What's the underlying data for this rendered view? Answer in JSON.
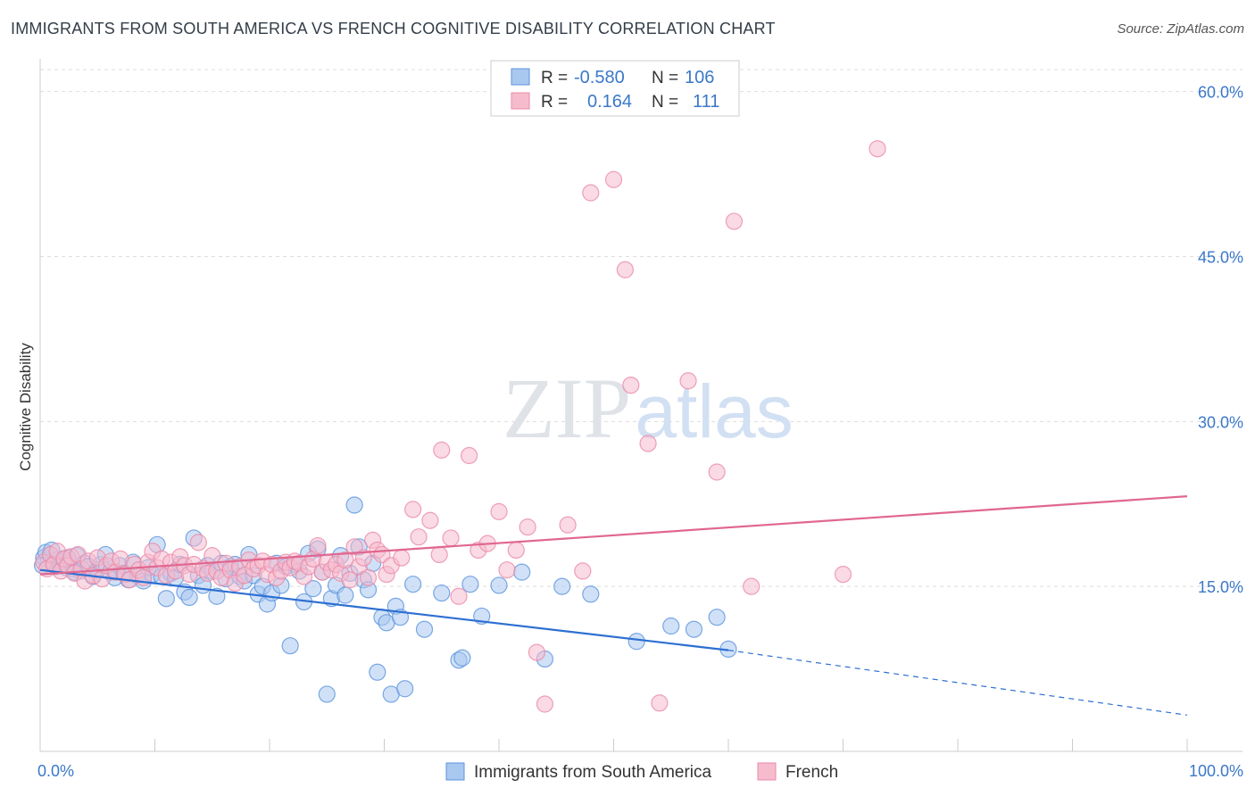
{
  "title": "IMMIGRANTS FROM SOUTH AMERICA VS FRENCH COGNITIVE DISABILITY CORRELATION CHART",
  "source": "Source: ZipAtlas.com",
  "watermark": {
    "zip": "ZIP",
    "atlas": "atlas"
  },
  "colors": {
    "blue_fill": "#a9c8f0",
    "blue_stroke": "#5b93dd",
    "blue_line": "#2d6fd2",
    "pink_fill": "#f6bccd",
    "pink_stroke": "#ea8aa8",
    "pink_line": "#e0678f",
    "tick": "#3a78c9",
    "grid": "#dddddd"
  },
  "legend": {
    "rows": [
      {
        "r_label": "R =",
        "r_value": "-0.580",
        "n_label": "N =",
        "n_value": "106"
      },
      {
        "r_label": "R =",
        "r_value": "0.164",
        "n_label": "N =",
        "n_value": "111"
      }
    ]
  },
  "chart_data": {
    "type": "scatter",
    "title": "IMMIGRANTS FROM SOUTH AMERICA VS FRENCH COGNITIVE DISABILITY CORRELATION CHART",
    "xlabel": "",
    "ylabel": "Cognitive Disability",
    "xlim": [
      0,
      100
    ],
    "ylim": [
      0,
      62
    ],
    "x_tick_labels": [
      "0.0%",
      "100.0%"
    ],
    "y_ticks": [
      15,
      30,
      45,
      60
    ],
    "y_tick_labels": [
      "15.0%",
      "30.0%",
      "45.0%",
      "60.0%"
    ],
    "grid": true,
    "legend_position": "top-center",
    "series": [
      {
        "name": "Immigrants from South America",
        "color": "#a9c8f0",
        "R": -0.58,
        "N": 106,
        "trend": {
          "x": [
            0,
            60,
            100
          ],
          "y": [
            16.5,
            9.2,
            3.3
          ],
          "solid_until": 60
        },
        "points": [
          [
            0.3,
            17.6
          ],
          [
            0.5,
            18.1
          ],
          [
            0.7,
            17.2
          ],
          [
            0.9,
            17.9
          ],
          [
            1.1,
            17.0
          ],
          [
            1.3,
            16.8
          ],
          [
            1.5,
            17.4
          ],
          [
            1.7,
            16.9
          ],
          [
            2.0,
            17.5
          ],
          [
            2.3,
            16.7
          ],
          [
            2.6,
            17.2
          ],
          [
            2.9,
            16.6
          ],
          [
            3.2,
            17.8
          ],
          [
            3.5,
            16.4
          ],
          [
            3.9,
            17.1
          ],
          [
            4.2,
            16.8
          ],
          [
            4.6,
            15.9
          ],
          [
            5.0,
            16.5
          ],
          [
            5.3,
            17.0
          ],
          [
            5.7,
            17.9
          ],
          [
            6.1,
            16.3
          ],
          [
            6.5,
            15.8
          ],
          [
            6.9,
            16.9
          ],
          [
            7.3,
            16.2
          ],
          [
            7.7,
            15.6
          ],
          [
            8.1,
            17.2
          ],
          [
            8.5,
            16.0
          ],
          [
            9.0,
            15.5
          ],
          [
            9.4,
            16.7
          ],
          [
            9.8,
            16.1
          ],
          [
            10.2,
            18.8
          ],
          [
            10.6,
            15.9
          ],
          [
            11.0,
            13.9
          ],
          [
            11.4,
            16.2
          ],
          [
            11.8,
            15.8
          ],
          [
            12.2,
            17.0
          ],
          [
            12.6,
            14.5
          ],
          [
            13.0,
            14.0
          ],
          [
            13.4,
            19.4
          ],
          [
            13.8,
            16.0
          ],
          [
            14.2,
            15.1
          ],
          [
            14.6,
            16.9
          ],
          [
            15.0,
            16.4
          ],
          [
            15.4,
            14.1
          ],
          [
            15.8,
            17.1
          ],
          [
            16.2,
            15.7
          ],
          [
            16.6,
            16.8
          ],
          [
            17.0,
            17.0
          ],
          [
            17.4,
            15.9
          ],
          [
            17.8,
            15.5
          ],
          [
            18.2,
            17.9
          ],
          [
            18.6,
            16.0
          ],
          [
            19.0,
            14.3
          ],
          [
            19.4,
            15.0
          ],
          [
            19.8,
            13.4
          ],
          [
            20.2,
            14.4
          ],
          [
            20.6,
            17.1
          ],
          [
            21.0,
            15.1
          ],
          [
            21.4,
            16.8
          ],
          [
            21.8,
            9.6
          ],
          [
            22.2,
            17.0
          ],
          [
            22.6,
            16.4
          ],
          [
            23.0,
            13.6
          ],
          [
            23.4,
            18.0
          ],
          [
            23.8,
            14.8
          ],
          [
            24.2,
            18.4
          ],
          [
            24.6,
            16.3
          ],
          [
            25.0,
            5.2
          ],
          [
            25.4,
            13.9
          ],
          [
            25.8,
            15.1
          ],
          [
            26.2,
            17.8
          ],
          [
            26.6,
            14.2
          ],
          [
            27.0,
            16.2
          ],
          [
            27.4,
            22.4
          ],
          [
            27.8,
            18.6
          ],
          [
            28.2,
            15.6
          ],
          [
            28.6,
            14.7
          ],
          [
            29.0,
            17.1
          ],
          [
            29.4,
            7.2
          ],
          [
            29.8,
            12.2
          ],
          [
            30.2,
            11.7
          ],
          [
            30.6,
            5.2
          ],
          [
            31.0,
            13.2
          ],
          [
            31.4,
            12.2
          ],
          [
            31.8,
            5.7
          ],
          [
            32.5,
            15.2
          ],
          [
            33.5,
            11.1
          ],
          [
            35.0,
            14.4
          ],
          [
            36.5,
            8.3
          ],
          [
            36.8,
            8.5
          ],
          [
            37.5,
            15.2
          ],
          [
            38.5,
            12.3
          ],
          [
            40.0,
            15.1
          ],
          [
            42.0,
            16.3
          ],
          [
            44.0,
            8.4
          ],
          [
            45.5,
            15.0
          ],
          [
            48.0,
            14.3
          ],
          [
            52.0,
            10.0
          ],
          [
            55.0,
            11.4
          ],
          [
            57.0,
            11.1
          ],
          [
            59.0,
            12.2
          ],
          [
            60.0,
            9.3
          ],
          [
            0.2,
            16.9
          ],
          [
            1.0,
            18.3
          ],
          [
            2.4,
            17.6
          ],
          [
            3.0,
            16.3
          ]
        ]
      },
      {
        "name": "French",
        "color": "#f6bccd",
        "R": 0.164,
        "N": 111,
        "trend": {
          "x": [
            0,
            100
          ],
          "y": [
            16.1,
            23.2
          ]
        },
        "points": [
          [
            0.3,
            17.2
          ],
          [
            0.6,
            16.6
          ],
          [
            0.9,
            17.9
          ],
          [
            1.2,
            17.0
          ],
          [
            1.5,
            18.2
          ],
          [
            1.8,
            16.4
          ],
          [
            2.1,
            17.5
          ],
          [
            2.4,
            16.9
          ],
          [
            2.7,
            17.7
          ],
          [
            3.0,
            16.2
          ],
          [
            3.3,
            17.9
          ],
          [
            3.6,
            16.6
          ],
          [
            3.9,
            15.5
          ],
          [
            4.2,
            17.3
          ],
          [
            4.6,
            16.0
          ],
          [
            5.0,
            17.6
          ],
          [
            5.4,
            15.7
          ],
          [
            5.8,
            16.9
          ],
          [
            6.2,
            17.3
          ],
          [
            6.6,
            16.3
          ],
          [
            7.0,
            17.5
          ],
          [
            7.4,
            16.1
          ],
          [
            7.8,
            15.6
          ],
          [
            8.2,
            17.0
          ],
          [
            8.6,
            16.5
          ],
          [
            9.0,
            15.8
          ],
          [
            9.4,
            17.2
          ],
          [
            9.8,
            18.2
          ],
          [
            10.2,
            16.7
          ],
          [
            10.6,
            17.5
          ],
          [
            11.0,
            16.0
          ],
          [
            11.4,
            17.2
          ],
          [
            11.8,
            16.4
          ],
          [
            12.2,
            17.7
          ],
          [
            12.6,
            16.9
          ],
          [
            13.0,
            16.1
          ],
          [
            13.4,
            17.0
          ],
          [
            13.8,
            19.0
          ],
          [
            14.2,
            16.6
          ],
          [
            14.6,
            16.2
          ],
          [
            15.0,
            17.8
          ],
          [
            15.4,
            16.4
          ],
          [
            15.8,
            15.8
          ],
          [
            16.2,
            17.1
          ],
          [
            16.6,
            16.5
          ],
          [
            17.0,
            15.3
          ],
          [
            17.4,
            16.8
          ],
          [
            17.8,
            16.0
          ],
          [
            18.2,
            17.4
          ],
          [
            18.6,
            16.6
          ],
          [
            19.0,
            16.9
          ],
          [
            19.4,
            17.3
          ],
          [
            19.8,
            16.1
          ],
          [
            20.2,
            17.0
          ],
          [
            20.6,
            15.8
          ],
          [
            21.0,
            16.4
          ],
          [
            21.4,
            17.2
          ],
          [
            21.8,
            16.7
          ],
          [
            22.2,
            17.3
          ],
          [
            22.6,
            17.1
          ],
          [
            23.0,
            15.9
          ],
          [
            23.4,
            16.8
          ],
          [
            23.8,
            17.5
          ],
          [
            24.2,
            18.7
          ],
          [
            24.6,
            16.3
          ],
          [
            25.0,
            17.2
          ],
          [
            25.4,
            16.5
          ],
          [
            25.8,
            17.0
          ],
          [
            26.2,
            16.2
          ],
          [
            26.6,
            17.4
          ],
          [
            27.0,
            15.6
          ],
          [
            27.4,
            18.6
          ],
          [
            27.8,
            16.8
          ],
          [
            28.2,
            17.6
          ],
          [
            28.6,
            15.8
          ],
          [
            29.0,
            19.2
          ],
          [
            29.4,
            18.3
          ],
          [
            29.8,
            17.9
          ],
          [
            30.2,
            16.1
          ],
          [
            30.6,
            16.9
          ],
          [
            31.5,
            17.6
          ],
          [
            32.5,
            22.0
          ],
          [
            33.0,
            19.5
          ],
          [
            34.0,
            21.0
          ],
          [
            34.8,
            17.9
          ],
          [
            35.0,
            27.4
          ],
          [
            35.8,
            19.4
          ],
          [
            36.5,
            14.1
          ],
          [
            37.4,
            26.9
          ],
          [
            38.2,
            18.3
          ],
          [
            39.0,
            18.9
          ],
          [
            40.0,
            21.8
          ],
          [
            40.7,
            16.5
          ],
          [
            41.5,
            18.3
          ],
          [
            42.5,
            20.4
          ],
          [
            43.3,
            9.0
          ],
          [
            44.0,
            4.3
          ],
          [
            46.0,
            20.6
          ],
          [
            47.3,
            16.4
          ],
          [
            48.0,
            50.8
          ],
          [
            50.0,
            52.0
          ],
          [
            51.0,
            43.8
          ],
          [
            51.5,
            33.3
          ],
          [
            53.0,
            28.0
          ],
          [
            54.0,
            4.4
          ],
          [
            56.5,
            33.7
          ],
          [
            59.0,
            25.4
          ],
          [
            60.5,
            48.2
          ],
          [
            62.0,
            15.0
          ],
          [
            70.0,
            16.1
          ],
          [
            73.0,
            54.8
          ]
        ]
      }
    ]
  },
  "bottom_legend": [
    {
      "label": "Immigrants from South America"
    },
    {
      "label": "French"
    }
  ]
}
